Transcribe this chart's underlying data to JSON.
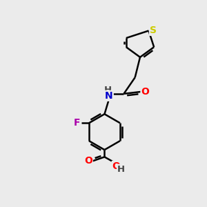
{
  "background_color": "#ebebeb",
  "atom_colors": {
    "C": "#000000",
    "N": "#0000cc",
    "O": "#ff0000",
    "S": "#cccc00",
    "F": "#aa00aa",
    "H": "#444444"
  },
  "bond_width": 1.8,
  "font_size": 10
}
